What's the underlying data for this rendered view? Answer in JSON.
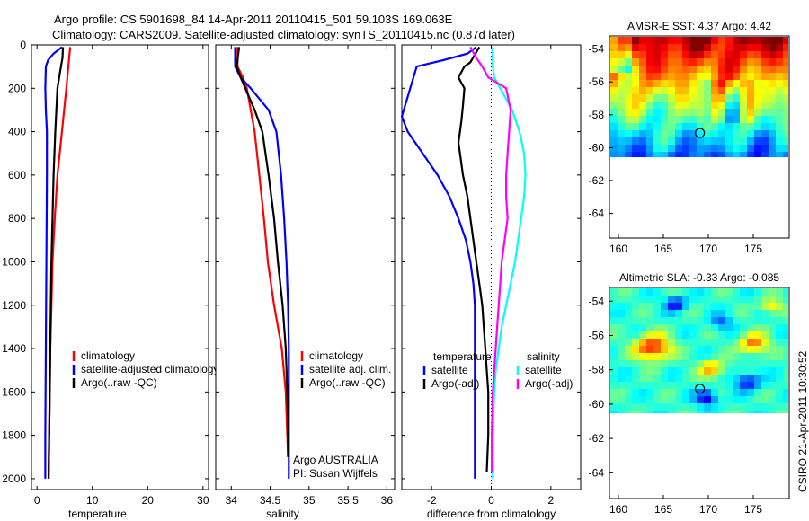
{
  "title_line1": "Argo profile: CS 5901698_84 14-Apr-2011 20110415_501 59.103S 169.063E",
  "title_line2": "Climatology: CARS2009. Satellite-adjusted climatology: synTS_20110415.nc (0.87d later)",
  "side_label": "CSIRO 21-Apr-2011 10:30:52",
  "colors": {
    "red": "#ff0000",
    "blue": "#0000ff",
    "black": "#000000",
    "cyan": "#00ffff",
    "magenta": "#ff00ff"
  },
  "chart_data": [
    {
      "type": "line",
      "xlabel": "temperature",
      "xlim": [
        -1,
        31
      ],
      "ylim": [
        0,
        2050
      ],
      "y_reversed": true,
      "xticks": [
        0,
        10,
        20,
        30
      ],
      "yticks": [
        0,
        200,
        400,
        600,
        800,
        1000,
        1200,
        1400,
        1600,
        1800,
        2000
      ],
      "legend": [
        "climatology",
        "satellite-adjusted climatology",
        "Argo(..raw -QC)"
      ],
      "legend_placement": "center-right",
      "series": [
        {
          "color": "red",
          "points": [
            [
              6,
              10
            ],
            [
              5.8,
              60
            ],
            [
              5.3,
              200
            ],
            [
              4.5,
              400
            ],
            [
              3.7,
              600
            ],
            [
              3.2,
              800
            ],
            [
              2.8,
              1000
            ],
            [
              2.6,
              1200
            ],
            [
              2.4,
              1400
            ],
            [
              2.3,
              1600
            ],
            [
              2.2,
              1800
            ],
            [
              2.1,
              2000
            ]
          ]
        },
        {
          "color": "blue",
          "points": [
            [
              4.5,
              10
            ],
            [
              3,
              40
            ],
            [
              2,
              70
            ],
            [
              1.6,
              100
            ],
            [
              1.5,
              200
            ],
            [
              1.6,
              300
            ],
            [
              1.8,
              400
            ],
            [
              1.8,
              600
            ],
            [
              1.75,
              800
            ],
            [
              1.7,
              1000
            ],
            [
              1.65,
              1200
            ],
            [
              1.6,
              1400
            ],
            [
              1.55,
              1600
            ],
            [
              1.5,
              1800
            ],
            [
              1.5,
              2000
            ]
          ]
        },
        {
          "color": "black",
          "points": [
            [
              4.7,
              10
            ],
            [
              4.6,
              60
            ],
            [
              4.2,
              120
            ],
            [
              3.7,
              200
            ],
            [
              3.3,
              400
            ],
            [
              3,
              600
            ],
            [
              2.8,
              800
            ],
            [
              2.6,
              1000
            ],
            [
              2.5,
              1200
            ],
            [
              2.4,
              1400
            ],
            [
              2.3,
              1600
            ],
            [
              2.2,
              1800
            ],
            [
              2.1,
              2000
            ]
          ]
        }
      ]
    },
    {
      "type": "line",
      "xlabel": "salinity",
      "xlim": [
        33.8,
        36.1
      ],
      "ylim": [
        0,
        2050
      ],
      "y_reversed": true,
      "xticks": [
        34,
        34.5,
        35,
        35.5,
        36
      ],
      "legend": [
        "climatology",
        "satellite adj. clim.",
        "Argo(..raw -QC)"
      ],
      "legend_placement": "center-right",
      "annotations": [
        "Argo AUSTRALIA",
        "PI: Susan Wijffels"
      ],
      "series": [
        {
          "color": "red",
          "points": [
            [
              34.08,
              10
            ],
            [
              34.08,
              100
            ],
            [
              34.15,
              150
            ],
            [
              34.2,
              200
            ],
            [
              34.3,
              400
            ],
            [
              34.36,
              600
            ],
            [
              34.42,
              800
            ],
            [
              34.47,
              1000
            ],
            [
              34.55,
              1200
            ],
            [
              34.65,
              1400
            ],
            [
              34.7,
              1600
            ],
            [
              34.72,
              1800
            ],
            [
              34.73,
              1900
            ]
          ]
        },
        {
          "color": "blue",
          "points": [
            [
              34.05,
              10
            ],
            [
              34.05,
              100
            ],
            [
              34.12,
              150
            ],
            [
              34.25,
              200
            ],
            [
              34.48,
              300
            ],
            [
              34.58,
              400
            ],
            [
              34.64,
              600
            ],
            [
              34.68,
              800
            ],
            [
              34.71,
              1000
            ],
            [
              34.73,
              1200
            ],
            [
              34.74,
              1400
            ],
            [
              34.74,
              1600
            ],
            [
              34.74,
              1800
            ],
            [
              34.74,
              2000
            ]
          ]
        },
        {
          "color": "black",
          "points": [
            [
              34.1,
              10
            ],
            [
              34.07,
              100
            ],
            [
              34.12,
              150
            ],
            [
              34.18,
              200
            ],
            [
              34.3,
              300
            ],
            [
              34.4,
              400
            ],
            [
              34.48,
              600
            ],
            [
              34.55,
              800
            ],
            [
              34.6,
              1000
            ],
            [
              34.66,
              1200
            ],
            [
              34.7,
              1400
            ],
            [
              34.72,
              1600
            ],
            [
              34.73,
              1800
            ],
            [
              34.73,
              1900
            ]
          ]
        }
      ]
    },
    {
      "type": "line",
      "xlabel": "difference from climatology",
      "xlim": [
        -3,
        3
      ],
      "ylim": [
        0,
        2050
      ],
      "y_reversed": true,
      "xticks": [
        -2,
        0,
        2
      ],
      "zero_line": "dotted",
      "legend": [
        "temperature",
        "satellite",
        "Argo(-adj)",
        "salinity",
        "satellite",
        "Argo(-adj)"
      ],
      "legend_placement": "center",
      "series": [
        {
          "color": "blue",
          "points": [
            [
              -0.5,
              10
            ],
            [
              -0.8,
              40
            ],
            [
              -1.6,
              70
            ],
            [
              -2.5,
              100
            ],
            [
              -3,
              330
            ],
            [
              -2.8,
              400
            ],
            [
              -2.3,
              500
            ],
            [
              -1.8,
              600
            ],
            [
              -1.4,
              700
            ],
            [
              -1.1,
              800
            ],
            [
              -0.85,
              900
            ],
            [
              -0.7,
              1000
            ],
            [
              -0.6,
              1100
            ],
            [
              -0.55,
              1200
            ],
            [
              -0.55,
              1400
            ],
            [
              -0.55,
              1600
            ],
            [
              -0.55,
              1800
            ],
            [
              -0.55,
              2000
            ]
          ]
        },
        {
          "color": "black",
          "points": [
            [
              -0.4,
              10
            ],
            [
              -0.7,
              80
            ],
            [
              -0.9,
              100
            ],
            [
              -1.1,
              150
            ],
            [
              -0.9,
              200
            ],
            [
              -0.95,
              280
            ],
            [
              -1.0,
              350
            ],
            [
              -1.05,
              400
            ],
            [
              -1.1,
              450
            ],
            [
              -1.05,
              500
            ],
            [
              -0.95,
              600
            ],
            [
              -0.8,
              700
            ],
            [
              -0.7,
              800
            ],
            [
              -0.6,
              900
            ],
            [
              -0.5,
              1000
            ],
            [
              -0.4,
              1100
            ],
            [
              -0.3,
              1200
            ],
            [
              -0.25,
              1300
            ],
            [
              -0.2,
              1400
            ],
            [
              -0.15,
              1500
            ],
            [
              -0.1,
              1600
            ],
            [
              -0.1,
              1800
            ],
            [
              -0.15,
              1970
            ]
          ]
        },
        {
          "color": "cyan",
          "points": [
            [
              0.05,
              10
            ],
            [
              0.05,
              100
            ],
            [
              0.1,
              150
            ],
            [
              0.3,
              200
            ],
            [
              0.7,
              300
            ],
            [
              0.95,
              400
            ],
            [
              1.1,
              500
            ],
            [
              1.15,
              600
            ],
            [
              1.1,
              700
            ],
            [
              1.0,
              800
            ],
            [
              0.9,
              900
            ],
            [
              0.8,
              1000
            ],
            [
              0.65,
              1100
            ],
            [
              0.5,
              1200
            ],
            [
              0.35,
              1300
            ],
            [
              0.25,
              1400
            ],
            [
              0.15,
              1500
            ],
            [
              0.1,
              1600
            ],
            [
              0.05,
              1800
            ],
            [
              0.05,
              2000
            ]
          ]
        },
        {
          "color": "magenta",
          "points": [
            [
              -0.7,
              10
            ],
            [
              -0.5,
              60
            ],
            [
              -0.3,
              100
            ],
            [
              -0.1,
              150
            ],
            [
              0.5,
              200
            ],
            [
              0.65,
              300
            ],
            [
              0.6,
              400
            ],
            [
              0.55,
              500
            ],
            [
              0.5,
              600
            ],
            [
              0.5,
              700
            ],
            [
              0.55,
              800
            ],
            [
              0.45,
              900
            ],
            [
              0.35,
              1000
            ],
            [
              0.3,
              1100
            ],
            [
              0.25,
              1200
            ],
            [
              0.2,
              1300
            ],
            [
              0.15,
              1400
            ],
            [
              0.1,
              1500
            ],
            [
              0.05,
              1600
            ],
            [
              0.02,
              1800
            ],
            [
              0.02,
              1970
            ]
          ]
        }
      ]
    },
    {
      "type": "heatmap",
      "title": "AMSR-E SST: 4.37 Argo: 4.42",
      "xlim": [
        159,
        179
      ],
      "ylim": [
        -65.5,
        -53.2
      ],
      "xticks": [
        160,
        165,
        170,
        175
      ],
      "yticks": [
        -54,
        -56,
        -58,
        -60,
        -62,
        -64
      ],
      "data_lat_range": [
        -60,
        -53.2
      ],
      "marker": [
        169.063,
        -59.103
      ]
    },
    {
      "type": "heatmap",
      "title": "Altimetric SLA: -0.33 Argo: -0.085",
      "xlim": [
        159,
        179
      ],
      "ylim": [
        -65.5,
        -53.2
      ],
      "xticks": [
        160,
        165,
        170,
        175
      ],
      "yticks": [
        -54,
        -56,
        -58,
        -60,
        -62,
        -64
      ],
      "data_lat_range": [
        -60,
        -53.2
      ],
      "marker": [
        169.063,
        -59.103
      ]
    }
  ]
}
